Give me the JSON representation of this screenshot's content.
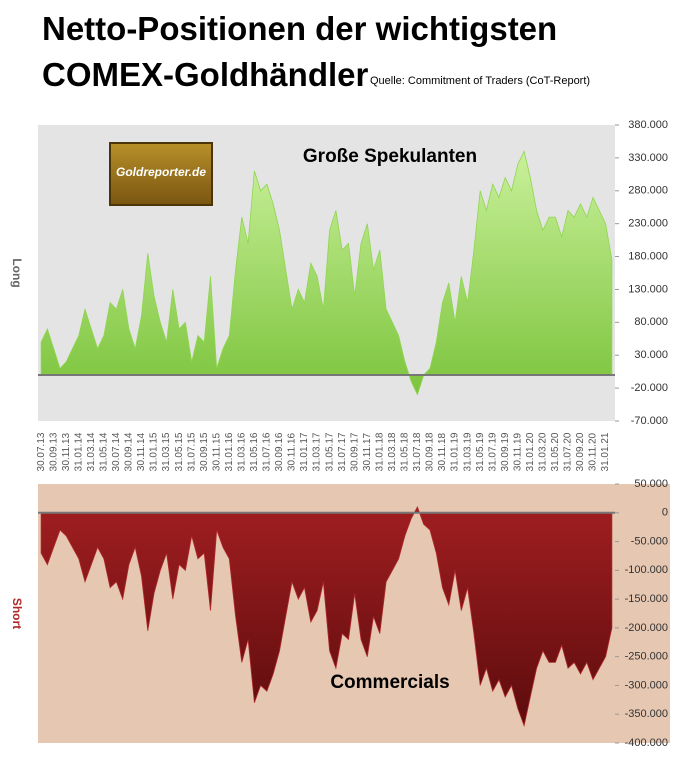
{
  "header": {
    "title_line1": "Netto-Positionen der wichtigsten",
    "title_line2": "COMEX-Goldhändler",
    "source": "Quelle: Commitment of Traders (CoT-Report)"
  },
  "logo": "Goldreporter.de",
  "chart_data": [
    {
      "type": "area",
      "ylabel": "Long",
      "annotation": "Große Spekulanten",
      "color": "#8fd64f",
      "background": "#e4e4e4",
      "categories": [
        "30.07.13",
        null,
        "30.09.13",
        null,
        "30.11.13",
        null,
        "31.01.14",
        null,
        "31.03.14",
        null,
        "31.05.14",
        null,
        "30.07.14",
        null,
        "30.09.14",
        null,
        "30.11.14",
        null,
        "31.01.15",
        null,
        "31.03.15",
        null,
        "31.05.15",
        null,
        "31.07.15",
        null,
        "30.09.15",
        null,
        "30.11.15",
        null,
        "31.01.16",
        null,
        "31.03.16",
        null,
        "31.05.16",
        null,
        "31.07.16",
        null,
        "30.09.16",
        null,
        "30.11.16",
        null,
        "31.01.17",
        null,
        "31.03.17",
        null,
        "31.05.17",
        null,
        "31.07.17",
        null,
        "30.09.17",
        null,
        "30.11.17",
        null,
        "31.01.18",
        null,
        "31.03.18",
        null,
        "31.05.18",
        null,
        "31.07.18",
        null,
        "30.09.18",
        null,
        "30.11.18",
        null,
        "31.01.19",
        null,
        "31.03.19",
        null,
        "31.05.19",
        null,
        "31.07.19",
        null,
        "30.09.19",
        null,
        "30.11.19",
        null,
        "31.01.20",
        null,
        "31.03.20",
        null,
        "31.05.20",
        null,
        "31.07.20",
        null,
        "30.09.20",
        null,
        "30.11.20",
        null,
        "31.01.21",
        null
      ],
      "values": [
        50000,
        70000,
        40000,
        10000,
        20000,
        40000,
        60000,
        100000,
        70000,
        40000,
        60000,
        110000,
        100000,
        130000,
        70000,
        40000,
        90000,
        185000,
        120000,
        80000,
        50000,
        130000,
        70000,
        80000,
        20000,
        60000,
        50000,
        150000,
        10000,
        40000,
        60000,
        160000,
        240000,
        200000,
        310000,
        280000,
        290000,
        260000,
        220000,
        160000,
        100000,
        130000,
        110000,
        170000,
        150000,
        100000,
        220000,
        250000,
        190000,
        200000,
        120000,
        200000,
        230000,
        160000,
        190000,
        100000,
        80000,
        60000,
        20000,
        -10000,
        -30000,
        0,
        10000,
        50000,
        110000,
        140000,
        80000,
        150000,
        110000,
        190000,
        280000,
        250000,
        290000,
        270000,
        300000,
        280000,
        320000,
        340000,
        300000,
        250000,
        220000,
        240000,
        240000,
        210000,
        250000,
        240000,
        260000,
        240000,
        270000,
        250000,
        230000,
        175000
      ],
      "ylim": [
        -70000,
        380000
      ],
      "yticks": [
        {
          "value": -70000,
          "label": "-70.000"
        },
        {
          "value": -20000,
          "label": "-20.000"
        },
        {
          "value": 30000,
          "label": "30.000"
        },
        {
          "value": 80000,
          "label": "80.000"
        },
        {
          "value": 130000,
          "label": "130.000"
        },
        {
          "value": 180000,
          "label": "180.000"
        },
        {
          "value": 230000,
          "label": "230.000"
        },
        {
          "value": 280000,
          "label": "280.000"
        },
        {
          "value": 330000,
          "label": "330.000"
        },
        {
          "value": 380000,
          "label": "380.000"
        }
      ]
    },
    {
      "type": "area",
      "ylabel": "Short",
      "annotation": "Commercials",
      "color": "#b0282a",
      "background": "#e6c7b2",
      "values": [
        -70000,
        -90000,
        -60000,
        -30000,
        -40000,
        -60000,
        -80000,
        -120000,
        -90000,
        -60000,
        -80000,
        -130000,
        -120000,
        -150000,
        -90000,
        -60000,
        -110000,
        -205000,
        -140000,
        -100000,
        -70000,
        -150000,
        -90000,
        -100000,
        -40000,
        -80000,
        -70000,
        -170000,
        -30000,
        -60000,
        -80000,
        -180000,
        -260000,
        -220000,
        -330000,
        -300000,
        -310000,
        -280000,
        -240000,
        -180000,
        -120000,
        -150000,
        -130000,
        -190000,
        -170000,
        -120000,
        -240000,
        -270000,
        -210000,
        -220000,
        -140000,
        -220000,
        -250000,
        -180000,
        -210000,
        -120000,
        -100000,
        -80000,
        -40000,
        -10000,
        10000,
        -20000,
        -30000,
        -70000,
        -130000,
        -160000,
        -100000,
        -170000,
        -130000,
        -210000,
        -300000,
        -270000,
        -310000,
        -290000,
        -320000,
        -300000,
        -340000,
        -370000,
        -320000,
        -270000,
        -240000,
        -260000,
        -260000,
        -230000,
        -270000,
        -260000,
        -280000,
        -260000,
        -290000,
        -270000,
        -250000,
        -200000
      ],
      "ylim": [
        -400000,
        50000
      ],
      "yticks": [
        {
          "value": -400000,
          "label": "-400.000"
        },
        {
          "value": -350000,
          "label": "-350.000"
        },
        {
          "value": -300000,
          "label": "-300.000"
        },
        {
          "value": -250000,
          "label": "-250.000"
        },
        {
          "value": -200000,
          "label": "-200.000"
        },
        {
          "value": -150000,
          "label": "-150.000"
        },
        {
          "value": -100000,
          "label": "-100.000"
        },
        {
          "value": -50000,
          "label": "-50.000"
        },
        0,
        {
          "value": 50000,
          "label": "50.000"
        }
      ]
    }
  ]
}
